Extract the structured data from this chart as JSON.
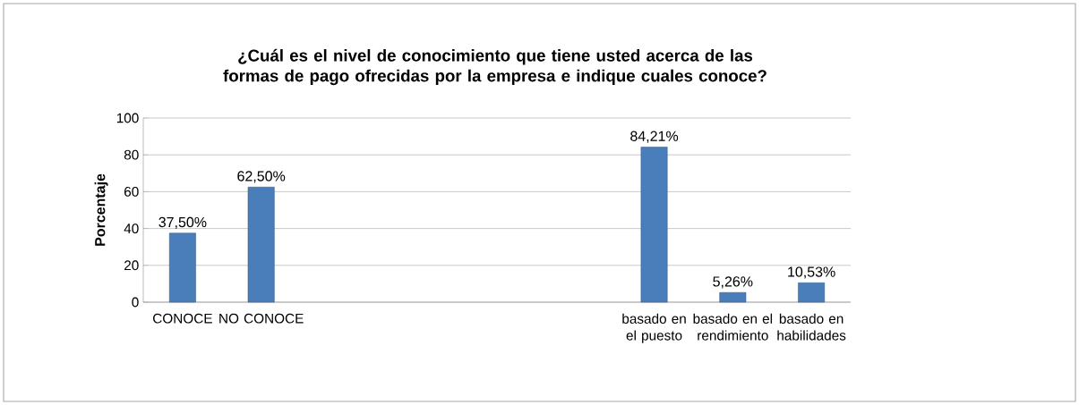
{
  "chart_data": {
    "type": "bar",
    "title": "¿Cuál es el nivel de conocimiento que tiene usted acerca de las formas de pago ofrecidas por la empresa e indique cuales conoce?",
    "ylabel": "Porcentaje",
    "categories": [
      "CONOCE",
      "NO CONOCE",
      null,
      null,
      null,
      null,
      "basado en el puesto",
      "basado en el rendimiento",
      "basado en habilidades"
    ],
    "values": [
      37.5,
      62.5,
      null,
      null,
      null,
      null,
      84.21,
      5.26,
      10.53
    ],
    "value_labels": [
      "37,50%",
      "62,50%",
      null,
      null,
      null,
      null,
      "84,21%",
      "5,26%",
      "10,53%"
    ],
    "color": "#4a7ebb",
    "ylim": [
      0,
      100
    ],
    "yticks": [
      0,
      20,
      40,
      60,
      80,
      100
    ],
    "grid": "y"
  }
}
